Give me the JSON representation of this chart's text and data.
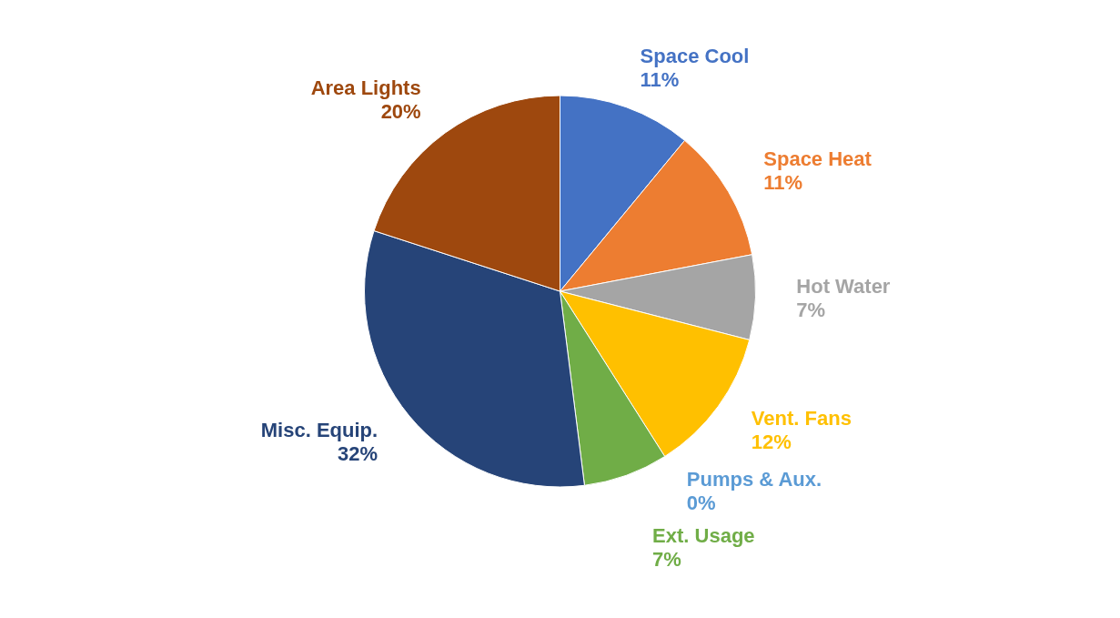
{
  "chart_data": {
    "type": "pie",
    "categories": [
      "Space Cool",
      "Space Heat",
      "Hot Water",
      "Vent. Fans",
      "Pumps & Aux.",
      "Ext. Usage",
      "Misc. Equip.",
      "Area Lights"
    ],
    "values": [
      11,
      11,
      7,
      12,
      0,
      7,
      32,
      20
    ],
    "colors": [
      "#4472c4",
      "#ed7d31",
      "#a5a5a5",
      "#ffc000",
      "#5b9bd5",
      "#70ad47",
      "#264478",
      "#9e480e"
    ],
    "value_labels": [
      "11%",
      "11%",
      "7%",
      "12%",
      "0%",
      "7%",
      "32%",
      "20%"
    ]
  }
}
